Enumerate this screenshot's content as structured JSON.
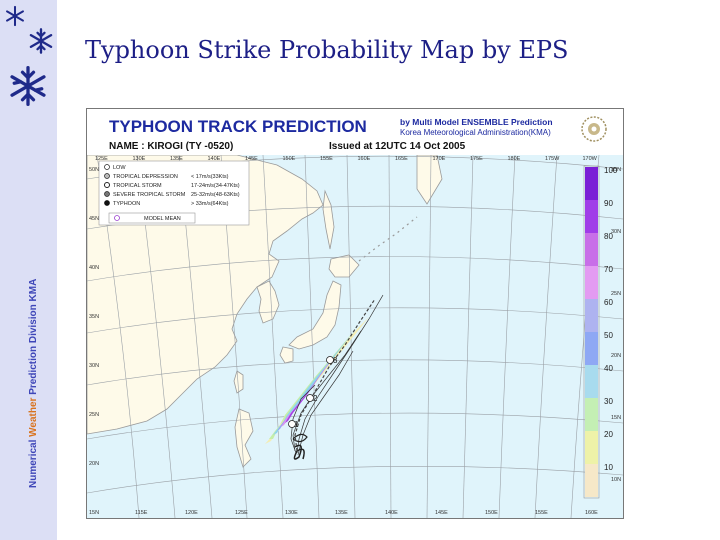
{
  "slide": {
    "title": "Typhoon Strike Probability Map by EPS",
    "sidebar_text_parts": [
      "Numerical ",
      "Weather",
      " Prediction Division  KMA"
    ]
  },
  "map": {
    "title": "TYPHOON  TRACK  PREDICTION",
    "agency_line1": "by Multi Model ENSEMBLE Prediction",
    "agency_line2": "Korea Meteorological Administration(KMA)",
    "name_label": "NAME :  KIROGI (TY -0520)",
    "issued": "Issued at 12UTC 14 Oct 2005",
    "legend": [
      {
        "symbol": "low",
        "label": "LOW",
        "speed": ""
      },
      {
        "symbol": "td",
        "label": "TROPICAL DEPRESSION",
        "speed": "< 17m/s(33Kts)"
      },
      {
        "symbol": "ts",
        "label": "TROPICAL STORM",
        "speed": "17-24m/s(34-47Kts)"
      },
      {
        "symbol": "sts",
        "label": "SEVERE TROPICAL STORM",
        "speed": "25-32m/s(48-63Kts)"
      },
      {
        "symbol": "ty",
        "label": "TYPHOON",
        "speed": "> 33m/s(64Kts)"
      }
    ],
    "legend_model": "MODEL  MEAN",
    "lon_top": [
      "125E",
      "130E",
      "135E",
      "140E",
      "145E",
      "150E",
      "155E",
      "160E",
      "165E",
      "170E",
      "175E",
      "180E",
      "175W",
      "170W"
    ],
    "lon_bottom": [
      "115E",
      "120E",
      "125E",
      "130E",
      "135E",
      "140E",
      "145E",
      "150E",
      "155E",
      "160E"
    ],
    "lat_left": [
      "50N",
      "45N",
      "40N",
      "35N",
      "30N",
      "25N",
      "20N",
      "15N"
    ],
    "lat_right": [
      "35N",
      "30N",
      "25N",
      "20N",
      "15N",
      "10N"
    ],
    "colorbar": {
      "labels": [
        "100",
        "90",
        "80",
        "70",
        "60",
        "50",
        "40",
        "30",
        "20",
        "10"
      ],
      "colors": [
        "#7a1fd6",
        "#a03de8",
        "#c86fe8",
        "#e39bf2",
        "#aeb3f0",
        "#8ea8f4",
        "#a8dbee",
        "#c4efb4",
        "#eef2a8",
        "#f6e8c8"
      ]
    },
    "track_labels": [
      "3",
      "2",
      "1"
    ],
    "colors": {
      "land": "#fefae9",
      "ocean": "#e0f4fb",
      "title": "#1d2aa0",
      "track": "#222222"
    }
  }
}
